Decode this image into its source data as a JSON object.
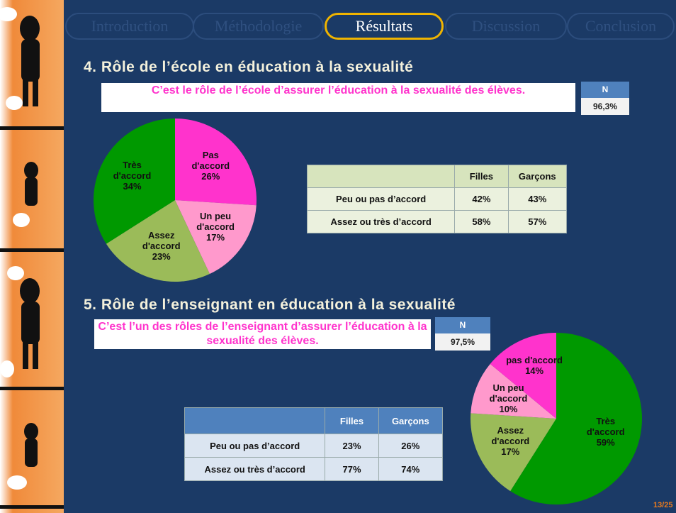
{
  "nav": {
    "tabs": [
      "Introduction",
      "Méthodologie",
      "Résultats",
      "Discussion",
      "Conclusion"
    ],
    "active": 2
  },
  "sections": [
    {
      "heading": "4. Rôle de l’école en éducation à la sexualité",
      "statement": "C’est le rôle de l’école d’assurer l’éducation à la sexualité des élèves.",
      "n_box": {
        "header": "N",
        "value": "96,3%"
      },
      "table": {
        "columns": [
          "Filles",
          "Garçons"
        ],
        "rows": [
          {
            "label": "Peu ou pas d’accord",
            "cells": [
              "42%",
              "43%"
            ]
          },
          {
            "label": "Assez ou très d’accord",
            "cells": [
              "58%",
              "57%"
            ]
          }
        ]
      }
    },
    {
      "heading": "5. Rôle de l’enseignant en éducation à la sexualité",
      "statement": "C’est l’un des rôles de l’enseignant d’assurer l’éducation à la sexualité des élèves.",
      "n_box": {
        "header": "N",
        "value": "97,5%"
      },
      "table": {
        "columns": [
          "Filles",
          "Garçons"
        ],
        "rows": [
          {
            "label": "Peu ou pas d’accord",
            "cells": [
              "23%",
              "26%"
            ]
          },
          {
            "label": "Assez ou très d’accord",
            "cells": [
              "77%",
              "74%"
            ]
          }
        ]
      }
    }
  ],
  "chart_data": [
    {
      "type": "pie",
      "categories": [
        "Pas d'accord",
        "Un peu d'accord",
        "Assez d'accord",
        "Très d'accord"
      ],
      "values": [
        26,
        17,
        23,
        34
      ],
      "value_labels": [
        "26%",
        "17%",
        "23%",
        "34%"
      ],
      "colors": [
        "#ff33cc",
        "#ff99cc",
        "#9bbb59",
        "#009900"
      ]
    },
    {
      "type": "pie",
      "categories": [
        "Très d'accord",
        "Assez d'accord",
        "Un peu d'accord",
        "pas d'accord"
      ],
      "values": [
        59,
        17,
        10,
        14
      ],
      "value_labels": [
        "59%",
        "17%",
        "10%",
        "14%"
      ],
      "colors": [
        "#009900",
        "#9bbb59",
        "#ff99cc",
        "#ff33cc"
      ]
    }
  ],
  "page_number": "13/25"
}
